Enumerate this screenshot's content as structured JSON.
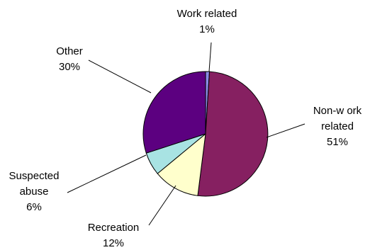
{
  "chart_data": {
    "type": "pie",
    "title": "",
    "slices": [
      {
        "label_lines": [
          "Work related"
        ],
        "pct_text": "1%",
        "value": 1,
        "color": "#8a8ae6"
      },
      {
        "label_lines": [
          "Non-w ork",
          "related"
        ],
        "pct_text": "51%",
        "value": 51,
        "color": "#862061"
      },
      {
        "label_lines": [
          "Recreation"
        ],
        "pct_text": "12%",
        "value": 12,
        "color": "#ffffcc"
      },
      {
        "label_lines": [
          "Suspected",
          "abuse"
        ],
        "pct_text": "6%",
        "value": 6,
        "color": "#a8e3e3"
      },
      {
        "label_lines": [
          "Other"
        ],
        "pct_text": "30%",
        "value": 30,
        "color": "#5c0080"
      }
    ],
    "start_angle_deg": -90,
    "direction": "clockwise",
    "legend": "none"
  }
}
